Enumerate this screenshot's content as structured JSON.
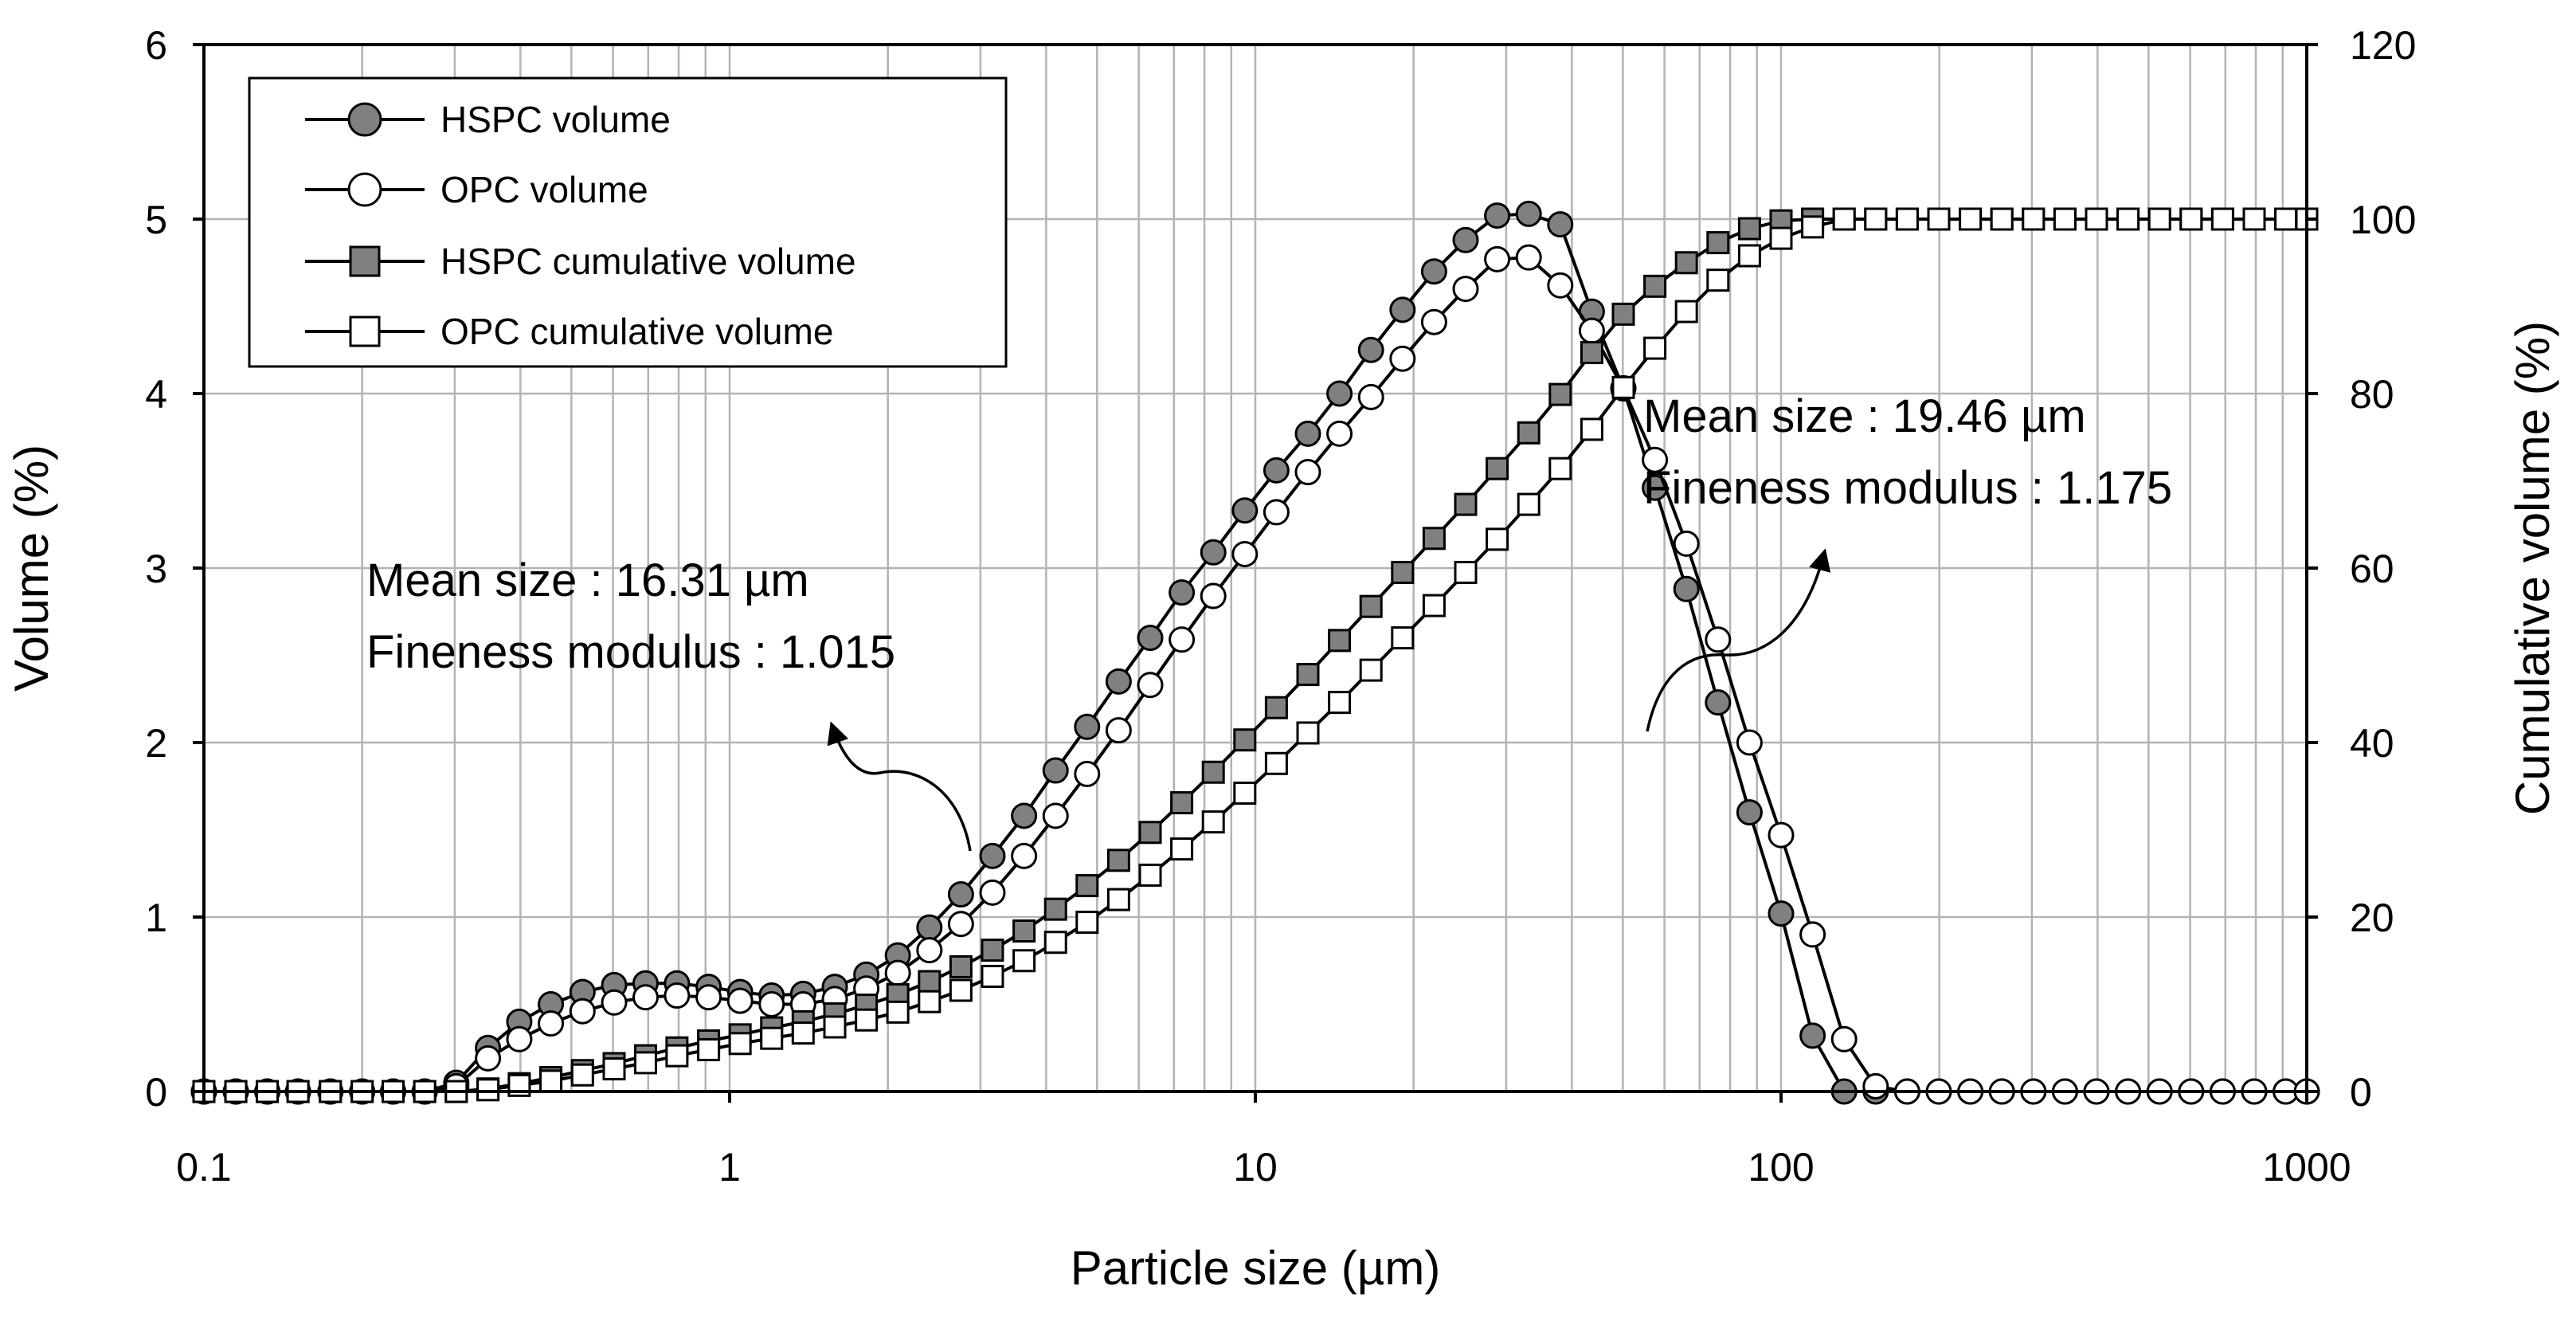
{
  "chart_data": {
    "type": "line",
    "title": "",
    "xlabel": "Particle size (µm)",
    "ylabel": "Volume (%)",
    "y2label": "Cumulative volume (%)",
    "xscale": "log",
    "xlim": [
      0.1,
      1000
    ],
    "ylim": [
      0,
      6
    ],
    "y2lim": [
      0,
      120
    ],
    "grid": true,
    "x_ticks": [
      "0.1",
      "1",
      "10",
      "100",
      "1000"
    ],
    "y_ticks": [
      "0",
      "1",
      "2",
      "3",
      "4",
      "5",
      "6"
    ],
    "y2_ticks": [
      "0",
      "20",
      "40",
      "60",
      "80",
      "100",
      "120"
    ],
    "legend_position": "top-left",
    "series": [
      {
        "name": "HSPC volume",
        "axis": "left",
        "marker": "circle",
        "fill": "#808080",
        "x": [
          0.1,
          0.115,
          0.132,
          0.151,
          0.174,
          0.2,
          0.229,
          0.263,
          0.302,
          0.347,
          0.398,
          0.457,
          0.525,
          0.603,
          0.692,
          0.794,
          0.912,
          1.047,
          1.202,
          1.38,
          1.585,
          1.82,
          2.089,
          2.399,
          2.754,
          3.162,
          3.631,
          4.169,
          4.786,
          5.495,
          6.31,
          7.244,
          8.318,
          9.55,
          10.965,
          12.589,
          14.454,
          16.596,
          19.055,
          21.878,
          25.119,
          28.84,
          33.113,
          38.019,
          43.652,
          50.119,
          57.544,
          66.069,
          75.858,
          87.096,
          100,
          114.82,
          131.83,
          151.36,
          173.78,
          199.53,
          229.09,
          263.03,
          301.99,
          346.74,
          398.11,
          457.09,
          524.81,
          602.56,
          691.83,
          794.33,
          912.01,
          1000
        ],
        "y": [
          0,
          0,
          0,
          0,
          0,
          0,
          0,
          0,
          0.05,
          0.25,
          0.4,
          0.5,
          0.57,
          0.61,
          0.62,
          0.62,
          0.6,
          0.57,
          0.55,
          0.56,
          0.6,
          0.67,
          0.78,
          0.94,
          1.13,
          1.35,
          1.58,
          1.84,
          2.09,
          2.35,
          2.6,
          2.86,
          3.09,
          3.33,
          3.56,
          3.77,
          4,
          4.25,
          4.48,
          4.7,
          4.88,
          5.02,
          5.03,
          4.97,
          4.47,
          4.03,
          3.46,
          2.88,
          2.23,
          1.6,
          1.02,
          0.32,
          0,
          0,
          0,
          0,
          0,
          0,
          0,
          0,
          0,
          0,
          0,
          0,
          0,
          0,
          0,
          0
        ]
      },
      {
        "name": "OPC volume",
        "axis": "left",
        "marker": "circle",
        "fill": "#ffffff",
        "x": [
          0.1,
          0.115,
          0.132,
          0.151,
          0.174,
          0.2,
          0.229,
          0.263,
          0.302,
          0.347,
          0.398,
          0.457,
          0.525,
          0.603,
          0.692,
          0.794,
          0.912,
          1.047,
          1.202,
          1.38,
          1.585,
          1.82,
          2.089,
          2.399,
          2.754,
          3.162,
          3.631,
          4.169,
          4.786,
          5.495,
          6.31,
          7.244,
          8.318,
          9.55,
          10.965,
          12.589,
          14.454,
          16.596,
          19.055,
          21.878,
          25.119,
          28.84,
          33.113,
          38.019,
          43.652,
          50.119,
          57.544,
          66.069,
          75.858,
          87.096,
          100,
          114.82,
          131.83,
          151.36,
          173.78,
          199.53,
          229.09,
          263.03,
          301.99,
          346.74,
          398.11,
          457.09,
          524.81,
          602.56,
          691.83,
          794.33,
          912.01,
          1000
        ],
        "y": [
          0,
          0,
          0,
          0,
          0,
          0,
          0,
          0,
          0.03,
          0.19,
          0.3,
          0.39,
          0.46,
          0.51,
          0.54,
          0.55,
          0.54,
          0.52,
          0.5,
          0.5,
          0.53,
          0.59,
          0.68,
          0.81,
          0.96,
          1.14,
          1.35,
          1.58,
          1.82,
          2.07,
          2.33,
          2.59,
          2.84,
          3.08,
          3.32,
          3.55,
          3.77,
          3.98,
          4.2,
          4.41,
          4.6,
          4.77,
          4.78,
          4.62,
          4.36,
          4.03,
          3.62,
          3.14,
          2.59,
          2,
          1.47,
          0.9,
          0.3,
          0.03,
          0,
          0,
          0,
          0,
          0,
          0,
          0,
          0,
          0,
          0,
          0,
          0,
          0,
          0
        ]
      },
      {
        "name": "HSPC cumulative volume",
        "axis": "right",
        "marker": "square",
        "fill": "#808080",
        "x": [
          0.1,
          0.115,
          0.132,
          0.151,
          0.174,
          0.2,
          0.229,
          0.263,
          0.302,
          0.347,
          0.398,
          0.457,
          0.525,
          0.603,
          0.692,
          0.794,
          0.912,
          1.047,
          1.202,
          1.38,
          1.585,
          1.82,
          2.089,
          2.399,
          2.754,
          3.162,
          3.631,
          4.169,
          4.786,
          5.495,
          6.31,
          7.244,
          8.318,
          9.55,
          10.965,
          12.589,
          14.454,
          16.596,
          19.055,
          21.878,
          25.119,
          28.84,
          33.113,
          38.019,
          43.652,
          50.119,
          57.544,
          66.069,
          75.858,
          87.096,
          100,
          114.82,
          131.83,
          151.36,
          173.78,
          199.53,
          229.09,
          263.03,
          301.99,
          346.74,
          398.11,
          457.09,
          524.81,
          602.56,
          691.83,
          794.33,
          912.01,
          1000
        ],
        "y": [
          0,
          0,
          0,
          0,
          0,
          0,
          0,
          0,
          0,
          0.3,
          0.9,
          1.6,
          2.4,
          3.2,
          4.1,
          5,
          5.8,
          6.5,
          7.3,
          8,
          8.9,
          9.9,
          11.1,
          12.6,
          14.3,
          16.2,
          18.4,
          20.9,
          23.6,
          26.5,
          29.7,
          33.1,
          36.6,
          40.3,
          44,
          47.8,
          51.7,
          55.6,
          59.5,
          63.4,
          67.3,
          71.4,
          75.5,
          79.9,
          84.7,
          89.1,
          92.3,
          95,
          97.3,
          98.9,
          99.8,
          100,
          100,
          100,
          100,
          100,
          100,
          100,
          100,
          100,
          100,
          100,
          100,
          100,
          100,
          100,
          100,
          100
        ]
      },
      {
        "name": "OPC cumulative volume",
        "axis": "right",
        "marker": "square",
        "fill": "#ffffff",
        "x": [
          0.1,
          0.115,
          0.132,
          0.151,
          0.174,
          0.2,
          0.229,
          0.263,
          0.302,
          0.347,
          0.398,
          0.457,
          0.525,
          0.603,
          0.692,
          0.794,
          0.912,
          1.047,
          1.202,
          1.38,
          1.585,
          1.82,
          2.089,
          2.399,
          2.754,
          3.162,
          3.631,
          4.169,
          4.786,
          5.495,
          6.31,
          7.244,
          8.318,
          9.55,
          10.965,
          12.589,
          14.454,
          16.596,
          19.055,
          21.878,
          25.119,
          28.84,
          33.113,
          38.019,
          43.652,
          50.119,
          57.544,
          66.069,
          75.858,
          87.096,
          100,
          114.82,
          131.83,
          151.36,
          173.78,
          199.53,
          229.09,
          263.03,
          301.99,
          346.74,
          398.11,
          457.09,
          524.81,
          602.56,
          691.83,
          794.33,
          912.01,
          1000
        ],
        "y": [
          0,
          0,
          0,
          0,
          0,
          0,
          0,
          0,
          0,
          0.2,
          0.7,
          1.2,
          1.9,
          2.6,
          3.3,
          4.1,
          4.8,
          5.5,
          6.1,
          6.7,
          7.4,
          8.2,
          9.1,
          10.3,
          11.6,
          13.2,
          15,
          17.1,
          19.4,
          22,
          24.8,
          27.8,
          30.9,
          34.2,
          37.6,
          41.1,
          44.6,
          48.3,
          52,
          55.7,
          59.5,
          63.3,
          67.3,
          71.4,
          75.9,
          80.7,
          85.2,
          89.4,
          93,
          95.8,
          97.8,
          99.1,
          100,
          100,
          100,
          100,
          100,
          100,
          100,
          100,
          100,
          100,
          100,
          100,
          100,
          100,
          100,
          100
        ]
      }
    ],
    "annotations": [
      {
        "id": "hspc",
        "lines": [
          "Mean size : 16.31 µm",
          "Fineness modulus : 1.015"
        ]
      },
      {
        "id": "opc",
        "lines": [
          "Mean size : 19.46 µm",
          "Fineness modulus : 1.175"
        ]
      }
    ]
  }
}
